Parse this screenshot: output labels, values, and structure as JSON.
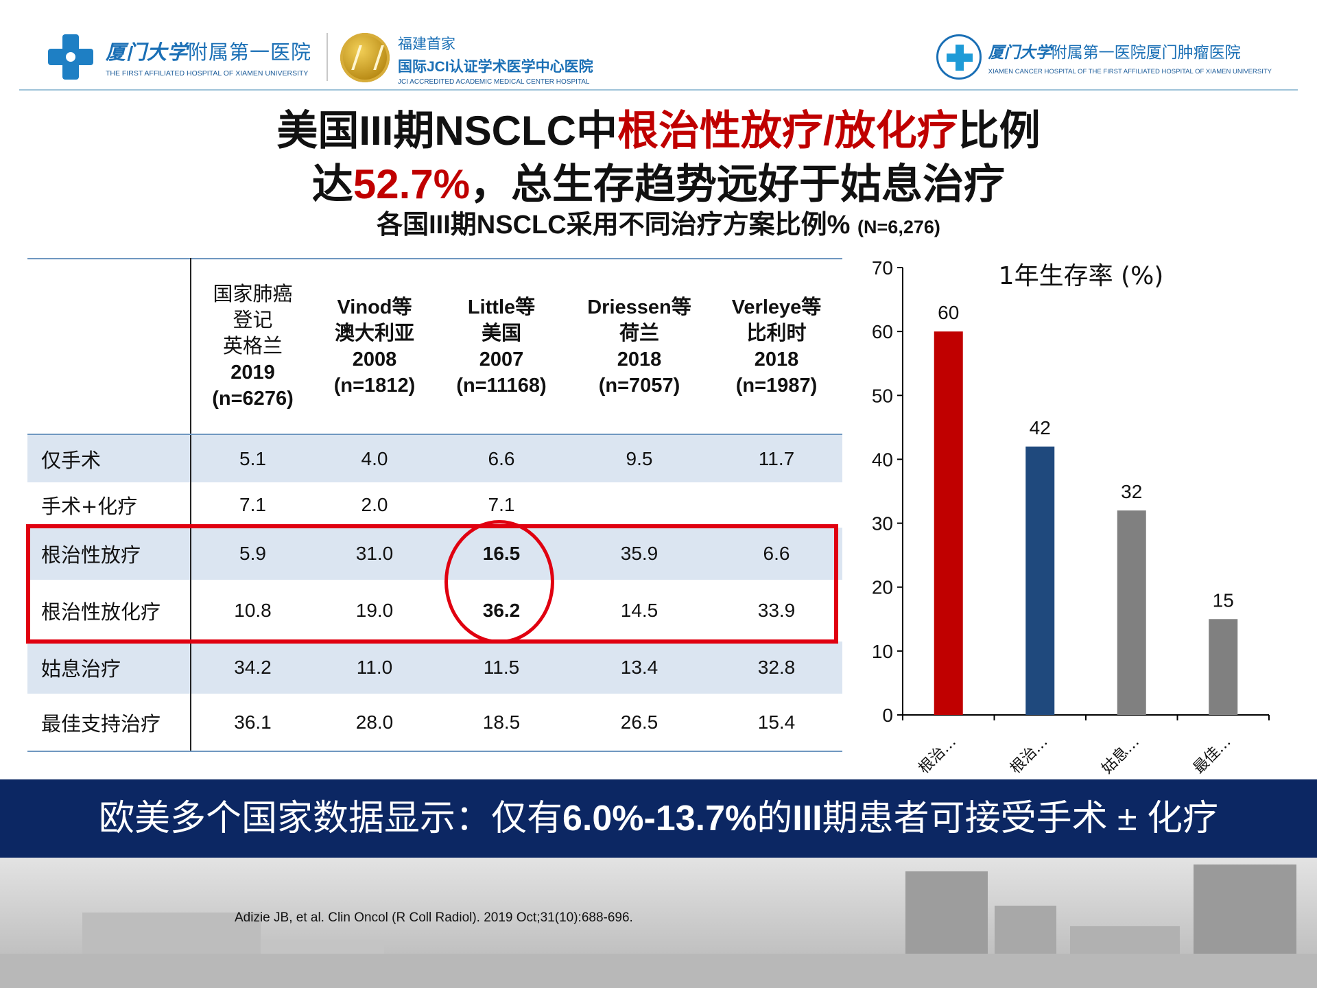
{
  "header": {
    "left_logo_cn_calli": "厦门大学",
    "left_logo_cn_rest": "附属第一医院",
    "left_logo_en": "THE FIRST AFFILIATED HOSPITAL OF XIAMEN UNIVERSITY",
    "jci_line1": "福建首家",
    "jci_line2": "国际JCI认证学术医学中心医院",
    "jci_line3": "JCI ACCREDITED ACADEMIC MEDICAL CENTER HOSPITAL",
    "right_logo_cn_calli": "厦门大学",
    "right_logo_cn_rest": "附属第一医院厦门肿瘤医院",
    "right_logo_en": "XIAMEN CANCER HOSPITAL OF THE FIRST AFFILIATED HOSPITAL OF XIAMEN UNIVERSITY"
  },
  "title": {
    "line1_a": "美国III期NSCLC中",
    "line1_red": "根治性放疗/放化疗",
    "line1_b": "比例",
    "line2_a": "达",
    "line2_red": "52.7%",
    "line2_b": "，总生存趋势远好于姑息治疗",
    "subtitle": "各国III期NSCLC采用不同治疗方案比例%",
    "subtitle_n": "(N=6,276)"
  },
  "table": {
    "headers": [
      [
        "国家肺癌",
        "登记",
        "英格兰",
        "2019",
        "(n=6276)"
      ],
      [
        "Vinod等",
        "澳大利亚",
        "2008",
        "(n=1812)"
      ],
      [
        "Little等",
        "美国",
        "2007",
        "(n=11168)"
      ],
      [
        "Driessen等",
        "荷兰",
        "2018",
        "(n=7057)"
      ],
      [
        "Verleye等",
        "比利时",
        "2018",
        "(n=1987)"
      ]
    ],
    "rows": [
      {
        "label": "仅手术",
        "values": [
          "5.1",
          "4.0",
          "6.6",
          "9.5",
          "11.7"
        ]
      },
      {
        "label": "手术+化疗",
        "values": [
          "7.1",
          "2.0",
          "7.1",
          "",
          ""
        ]
      },
      {
        "label": "根治性放疗",
        "values": [
          "5.9",
          "31.0",
          "16.5",
          "35.9",
          "6.6"
        ]
      },
      {
        "label": "根治性放化疗",
        "values": [
          "10.8",
          "19.0",
          "36.2",
          "14.5",
          "33.9"
        ]
      },
      {
        "label": "姑息治疗",
        "values": [
          "34.2",
          "11.0",
          "11.5",
          "13.4",
          "32.8"
        ]
      },
      {
        "label": "最佳支持治疗",
        "values": [
          "36.1",
          "28.0",
          "18.5",
          "26.5",
          "15.4"
        ]
      }
    ]
  },
  "chart_data": {
    "type": "bar",
    "title": "1年生存率 (%)",
    "categories": [
      "根治…",
      "根治…",
      "姑息…",
      "最佳…"
    ],
    "values": [
      60,
      42,
      32,
      15
    ],
    "colors": [
      "#c00000",
      "#1f497d",
      "#808080",
      "#808080"
    ],
    "ylim": [
      0,
      70
    ],
    "yticks": [
      0,
      10,
      20,
      30,
      40,
      50,
      60,
      70
    ],
    "grid": false
  },
  "banner": {
    "a": "欧美多个国家数据显示：仅有",
    "b": "6.0%-13.7%",
    "c": "的",
    "d": "III",
    "e": "期患者可接受手术 ± 化疗"
  },
  "reference": "Adizie JB, et al. Clin Oncol (R Coll Radiol). 2019 Oct;31(10):688-696."
}
